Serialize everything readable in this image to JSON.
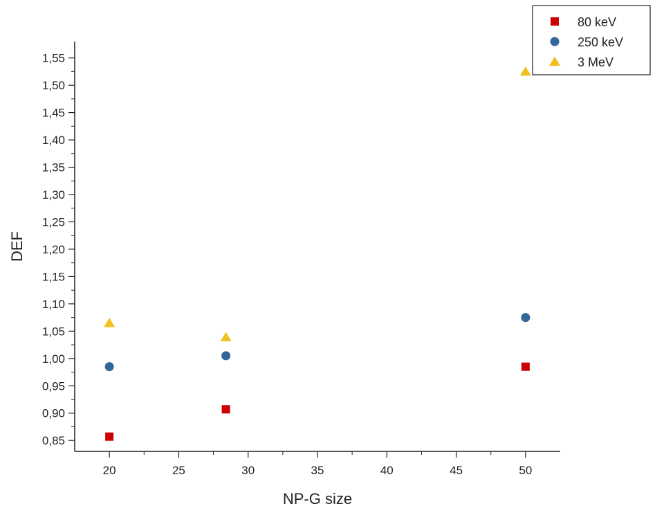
{
  "chart_data": {
    "type": "scatter",
    "xlabel": "NP-G size",
    "ylabel": "DEF",
    "xlim": [
      17.5,
      52.5
    ],
    "ylim": [
      0.83,
      1.58
    ],
    "xticks": [
      "20",
      "25",
      "30",
      "35",
      "40",
      "45",
      "50"
    ],
    "xtick_values": [
      20,
      25,
      30,
      35,
      40,
      45,
      50
    ],
    "yticks": [
      "0,85",
      "0,90",
      "0,95",
      "1,00",
      "1,05",
      "1,10",
      "1,15",
      "1,20",
      "1,25",
      "1,30",
      "1,35",
      "1,40",
      "1,45",
      "1,50",
      "1,55"
    ],
    "ytick_values": [
      0.85,
      0.9,
      0.95,
      1.0,
      1.05,
      1.1,
      1.15,
      1.2,
      1.25,
      1.3,
      1.35,
      1.4,
      1.45,
      1.5,
      1.55
    ],
    "grid": false,
    "legend_position": "top-right",
    "series": [
      {
        "name": "80 keV",
        "marker": "square",
        "color": "#cc0000",
        "x": [
          20,
          28.4,
          50
        ],
        "y": [
          0.857,
          0.907,
          0.985
        ]
      },
      {
        "name": "250 keV",
        "marker": "circle",
        "color": "#336699",
        "x": [
          20,
          28.4,
          50
        ],
        "y": [
          0.985,
          1.005,
          1.075
        ]
      },
      {
        "name": "3 MeV",
        "marker": "triangle",
        "color": "#f0c020",
        "x": [
          20,
          28.4,
          50
        ],
        "y": [
          1.065,
          1.039,
          1.525
        ]
      }
    ]
  }
}
